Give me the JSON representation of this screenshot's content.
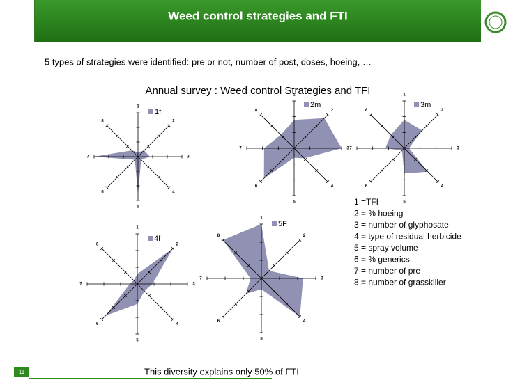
{
  "slide": {
    "title": "Weed control strategies and FTI",
    "subtitle": "5 types of strategies were identified: pre or not, number of post, doses, hoeing, …",
    "chart_heading": "Annual survey : Weed control Strategies and TFI",
    "key": [
      "1 =TFI",
      "2 = % hoeing",
      "3 = number of glyphosate",
      "4 = type of residual herbicide",
      "5 = spray volume",
      "6 = % generics",
      "7 = number of pre",
      "8 = number of grasskiller"
    ],
    "footer": "This diversity explains only 50% of FTI",
    "page_number": "11"
  },
  "chart_data": [
    {
      "type": "radar",
      "categories": [
        "1",
        "2",
        "3",
        "4",
        "5",
        "6",
        "7",
        "8"
      ],
      "rlim": [
        0,
        3
      ],
      "rticks": [
        1,
        2,
        3
      ],
      "series": [
        {
          "name": "1f",
          "color": "#9191b4",
          "values": [
            0.3,
            0.6,
            0.8,
            0.3,
            2.6,
            0.3,
            3,
            0.6
          ]
        }
      ]
    },
    {
      "type": "radar",
      "categories": [
        "1",
        "2",
        "3",
        "4",
        "5",
        "6",
        "7",
        "8"
      ],
      "rlim": [
        0,
        3
      ],
      "rticks": [
        1,
        2,
        3
      ],
      "series": [
        {
          "name": "2m",
          "color": "#9191b4",
          "values": [
            1.8,
            2.7,
            3,
            0.9,
            0.6,
            2.7,
            1.9,
            1.2
          ]
        }
      ]
    },
    {
      "type": "radar",
      "categories": [
        "1",
        "2",
        "3",
        "4",
        "5",
        "6",
        "7",
        "8"
      ],
      "rlim": [
        0,
        3
      ],
      "rticks": [
        1,
        2,
        3
      ],
      "series": [
        {
          "name": "3m",
          "color": "#9191b4",
          "values": [
            1.8,
            1.6,
            0.3,
            2.1,
            1.6,
            0.2,
            1.2,
            1.2
          ]
        }
      ]
    },
    {
      "type": "radar",
      "categories": [
        "1",
        "2",
        "3",
        "4",
        "5",
        "6",
        "7",
        "8"
      ],
      "rlim": [
        0,
        3
      ],
      "rticks": [
        1,
        2,
        3
      ],
      "series": [
        {
          "name": "4f",
          "color": "#9191b4",
          "values": [
            0.6,
            3,
            0.9,
            0.6,
            1.2,
            2.7,
            0.45,
            0.3
          ]
        }
      ]
    },
    {
      "type": "radar",
      "categories": [
        "1",
        "2",
        "3",
        "4",
        "5",
        "6",
        "7",
        "8"
      ],
      "rlim": [
        0,
        3
      ],
      "rticks": [
        1,
        2,
        3
      ],
      "series": [
        {
          "name": "5F",
          "color": "#9191b4",
          "values": [
            3,
            0.6,
            2.3,
            3,
            0.6,
            1.2,
            0.6,
            3
          ]
        }
      ]
    }
  ]
}
